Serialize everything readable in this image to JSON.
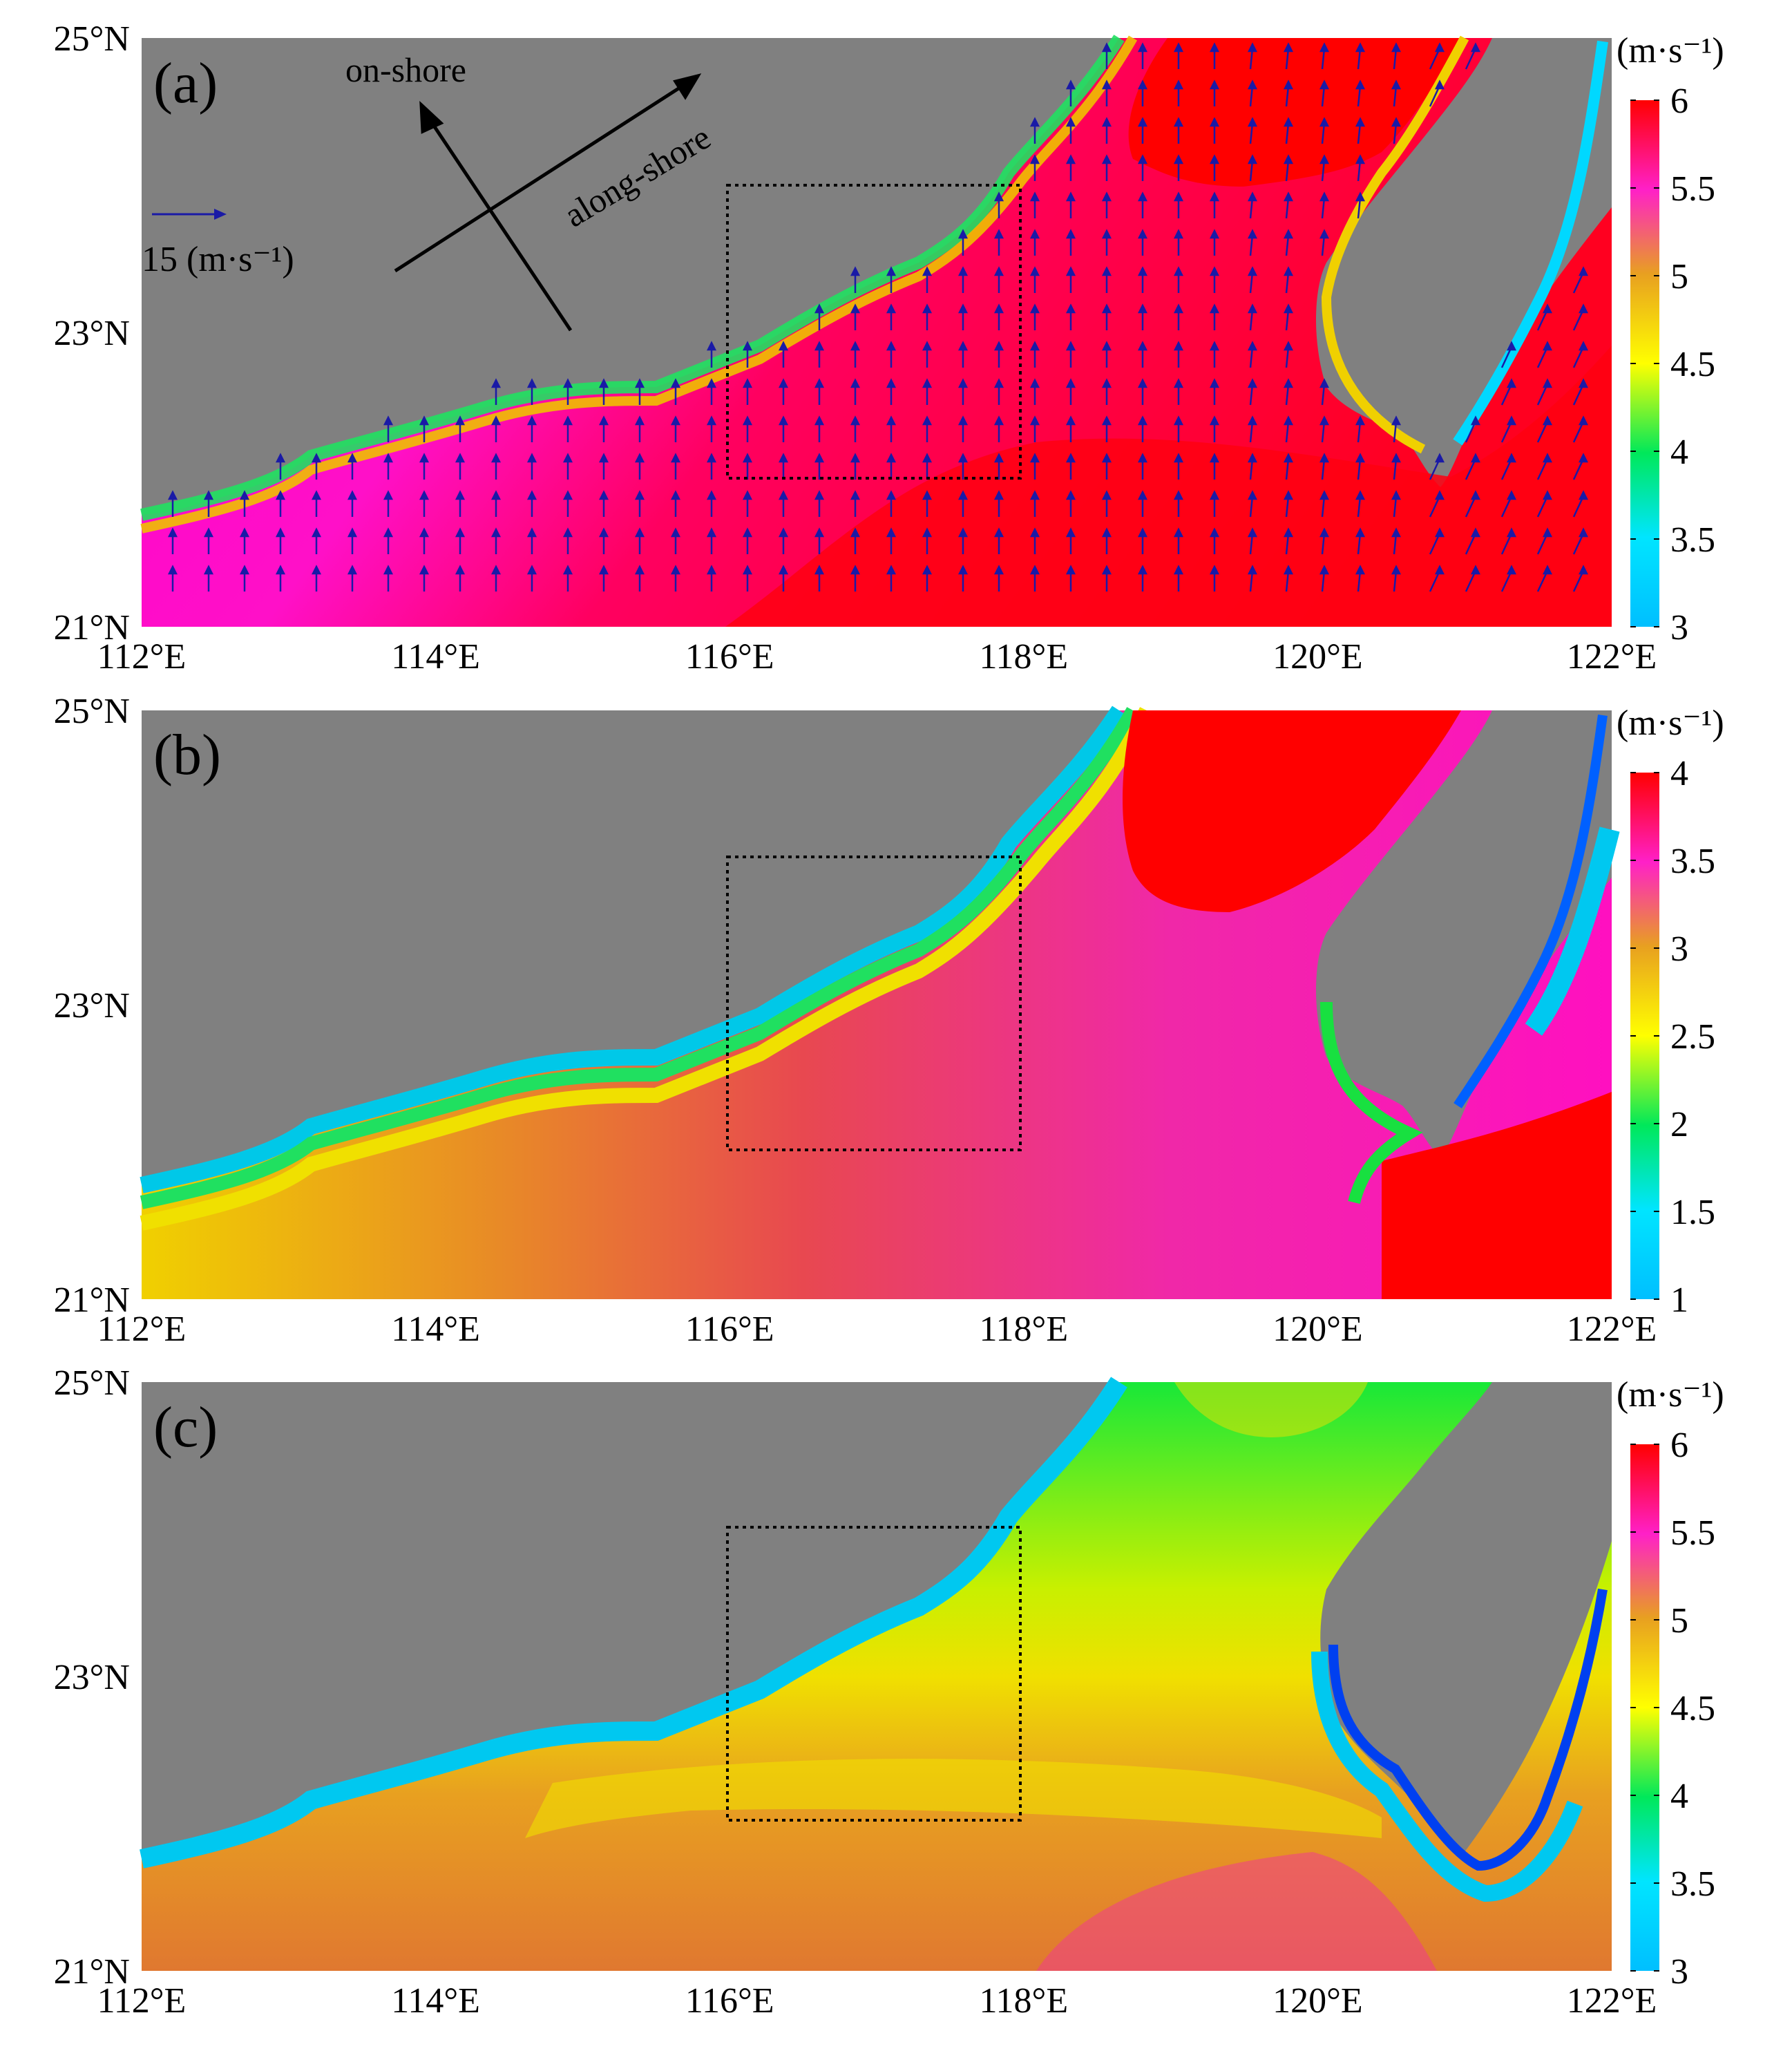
{
  "figure": {
    "x_ticks": [
      "112°E",
      "114°E",
      "116°E",
      "118°E",
      "120°E",
      "122°E"
    ],
    "y_ticks": [
      "21°N",
      "23°N",
      "25°N"
    ],
    "colorbar_unit": "(m·s⁻¹)"
  },
  "panels": [
    {
      "label": "(a)",
      "colorbar_ticks": [
        "3",
        "3.5",
        "4",
        "4.5",
        "5",
        "5.5",
        "6"
      ],
      "annotations": {
        "on_shore": "on-shore",
        "along_shore": "along-shore",
        "vector_scale": "15 (m·s⁻¹)"
      }
    },
    {
      "label": "(b)",
      "colorbar_ticks": [
        "1",
        "1.5",
        "2",
        "2.5",
        "3",
        "3.5",
        "4"
      ]
    },
    {
      "label": "(c)",
      "colorbar_ticks": [
        "3",
        "3.5",
        "4",
        "4.5",
        "5",
        "5.5",
        "6"
      ]
    }
  ],
  "colors": {
    "land": "#808080",
    "box": "#000000",
    "vectors": "#1a1aa6",
    "colormap": [
      "#00bfff",
      "#00e0e0",
      "#00e676",
      "#ffff00",
      "#f0a020",
      "#e04828",
      "#ff00ff",
      "#ff0000"
    ]
  }
}
